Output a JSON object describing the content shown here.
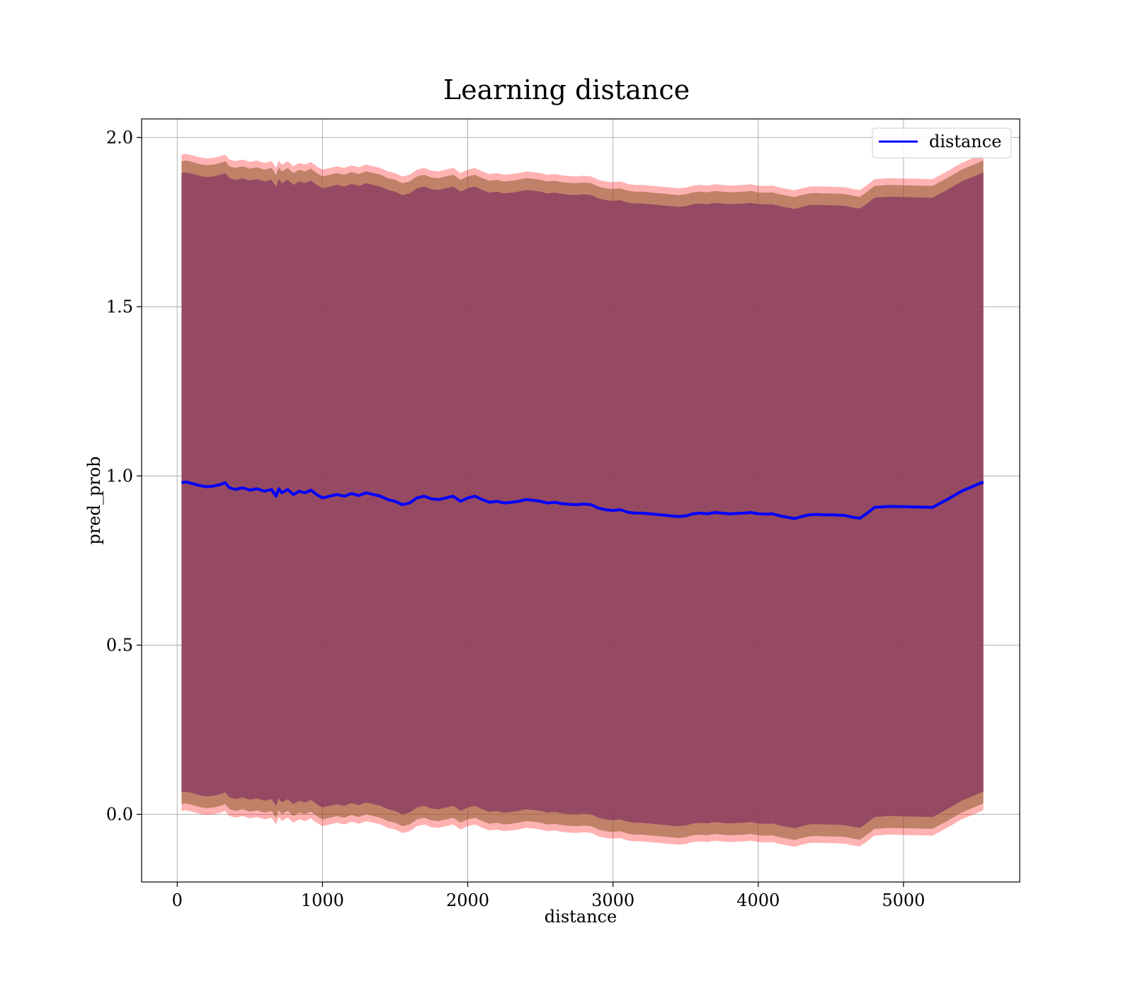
{
  "chart_data": {
    "type": "line",
    "title": "Learning distance",
    "xlabel": "distance",
    "ylabel": "pred_prob",
    "xlim": [
      -245,
      5800
    ],
    "ylim": [
      -0.2,
      2.055
    ],
    "grid": true,
    "legend_position": "top-right",
    "xticks": [
      0,
      1000,
      2000,
      3000,
      4000,
      5000
    ],
    "yticks": [
      0.0,
      0.5,
      1.0,
      1.5,
      2.0
    ],
    "xtick_labels": [
      "0",
      "1000",
      "2000",
      "3000",
      "4000",
      "5000"
    ],
    "ytick_labels": [
      "0.0",
      "0.5",
      "1.0",
      "1.5",
      "2.0"
    ],
    "colors": {
      "line": "#0000ff",
      "outer_band": "#ff0000",
      "middle_band": "#8b5a2b",
      "inner_band": "#8b3a62"
    },
    "series": [
      {
        "name": "distance",
        "x": [
          30,
          60,
          100,
          150,
          200,
          250,
          300,
          330,
          360,
          400,
          450,
          500,
          550,
          600,
          650,
          680,
          700,
          720,
          760,
          800,
          840,
          880,
          920,
          960,
          1000,
          1050,
          1100,
          1150,
          1200,
          1250,
          1300,
          1350,
          1400,
          1450,
          1500,
          1550,
          1600,
          1650,
          1700,
          1750,
          1800,
          1850,
          1900,
          1950,
          2000,
          2050,
          2100,
          2150,
          2200,
          2250,
          2300,
          2350,
          2400,
          2450,
          2500,
          2550,
          2600,
          2650,
          2700,
          2750,
          2800,
          2850,
          2900,
          2950,
          3000,
          3050,
          3100,
          3150,
          3200,
          3250,
          3300,
          3350,
          3400,
          3450,
          3500,
          3550,
          3600,
          3650,
          3700,
          3750,
          3800,
          3850,
          3900,
          3950,
          4000,
          4050,
          4100,
          4150,
          4200,
          4250,
          4300,
          4350,
          4400,
          4450,
          4500,
          4550,
          4600,
          4650,
          4700,
          4750,
          4800,
          4900,
          5000,
          5100,
          5200,
          5300,
          5400,
          5550
        ],
        "y": [
          0.98,
          0.982,
          0.978,
          0.972,
          0.968,
          0.97,
          0.975,
          0.98,
          0.965,
          0.96,
          0.965,
          0.958,
          0.962,
          0.955,
          0.96,
          0.94,
          0.962,
          0.95,
          0.96,
          0.945,
          0.955,
          0.95,
          0.958,
          0.945,
          0.935,
          0.94,
          0.945,
          0.94,
          0.948,
          0.942,
          0.95,
          0.945,
          0.94,
          0.93,
          0.925,
          0.915,
          0.92,
          0.935,
          0.94,
          0.932,
          0.93,
          0.935,
          0.94,
          0.925,
          0.935,
          0.94,
          0.93,
          0.922,
          0.925,
          0.92,
          0.922,
          0.925,
          0.93,
          0.928,
          0.925,
          0.92,
          0.922,
          0.918,
          0.916,
          0.915,
          0.917,
          0.915,
          0.905,
          0.9,
          0.898,
          0.9,
          0.893,
          0.89,
          0.89,
          0.888,
          0.886,
          0.884,
          0.882,
          0.88,
          0.882,
          0.888,
          0.89,
          0.888,
          0.892,
          0.89,
          0.888,
          0.889,
          0.89,
          0.892,
          0.888,
          0.887,
          0.888,
          0.882,
          0.878,
          0.874,
          0.88,
          0.885,
          0.886,
          0.885,
          0.885,
          0.884,
          0.883,
          0.878,
          0.875,
          0.89,
          0.907,
          0.91,
          0.909,
          0.908,
          0.907,
          0.93,
          0.955,
          0.982
        ]
      }
    ],
    "bands": [
      {
        "name": "outer",
        "offset": 0.97
      },
      {
        "name": "middle",
        "offset": 0.95
      },
      {
        "name": "inner",
        "offset": 0.915
      }
    ],
    "legend": [
      "distance"
    ]
  }
}
